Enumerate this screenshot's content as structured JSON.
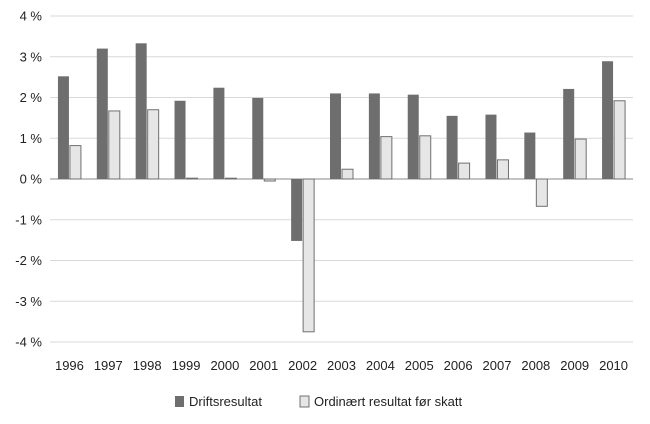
{
  "chart_data": {
    "type": "bar",
    "categories": [
      "1996",
      "1997",
      "1998",
      "1999",
      "2000",
      "2001",
      "2002",
      "2003",
      "2004",
      "2005",
      "2006",
      "2007",
      "2008",
      "2009",
      "2010"
    ],
    "series": [
      {
        "name": "Driftsresultat",
        "color": "#6e6e6e",
        "values": [
          2.52,
          3.2,
          3.33,
          1.92,
          2.24,
          1.99,
          -1.52,
          2.1,
          2.1,
          2.07,
          1.55,
          1.58,
          1.14,
          2.21,
          2.89
        ]
      },
      {
        "name": "Ordinært resultat før skatt",
        "color": "#e6e6e6",
        "values": [
          0.82,
          1.67,
          1.7,
          0.02,
          0.02,
          -0.05,
          -3.75,
          0.24,
          1.04,
          1.06,
          0.39,
          0.47,
          -0.67,
          0.98,
          1.92
        ]
      }
    ],
    "ylim": [
      -4,
      4
    ],
    "yticks": [
      -4,
      -3,
      -2,
      -1,
      0,
      1,
      2,
      3,
      4
    ],
    "ytick_labels": [
      "-4 %",
      "-3 %",
      "-2 %",
      "-1 %",
      "0 %",
      "1 %",
      "2 %",
      "3 %",
      "4 %"
    ],
    "grid": true,
    "legend_position": "bottom",
    "title": "",
    "xlabel": "",
    "ylabel": ""
  }
}
